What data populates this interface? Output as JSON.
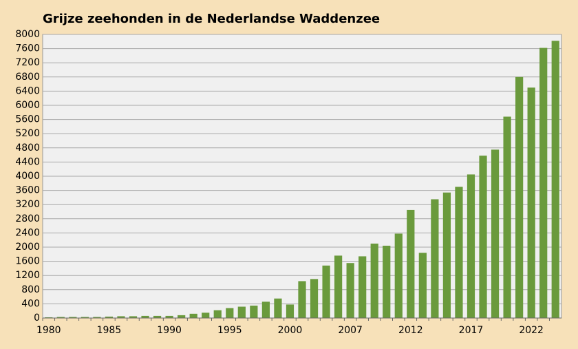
{
  "chart_data": {
    "type": "bar",
    "title": "Grijze  zeehonden  in  de  Nederlandse  Waddenzee",
    "categories": [
      "1980",
      null,
      null,
      null,
      null,
      "1985",
      null,
      null,
      null,
      null,
      "1990",
      null,
      null,
      null,
      null,
      "1995",
      null,
      null,
      null,
      null,
      "2000",
      null,
      null,
      null,
      null,
      "2007",
      null,
      null,
      null,
      null,
      "2012",
      null,
      null,
      null,
      null,
      "2017",
      null,
      null,
      null,
      null,
      "2022",
      null,
      null
    ],
    "values": [
      20,
      30,
      30,
      30,
      30,
      40,
      50,
      50,
      60,
      60,
      60,
      80,
      120,
      150,
      220,
      280,
      320,
      350,
      460,
      550,
      380,
      1040,
      1100,
      1480,
      1760,
      1550,
      1740,
      2100,
      2040,
      2380,
      3050,
      1840,
      3350,
      3540,
      3700,
      4050,
      4580,
      4750,
      5680,
      6800,
      6500,
      7620,
      7820
    ],
    "color": "#6a9a3c",
    "ylim": [
      0,
      8000
    ],
    "yticks": [
      0,
      400,
      800,
      1200,
      1600,
      2000,
      2400,
      2800,
      3200,
      3600,
      4000,
      4400,
      4800,
      5200,
      5600,
      6000,
      6400,
      6800,
      7200,
      7600,
      8000
    ],
    "grid": true
  }
}
